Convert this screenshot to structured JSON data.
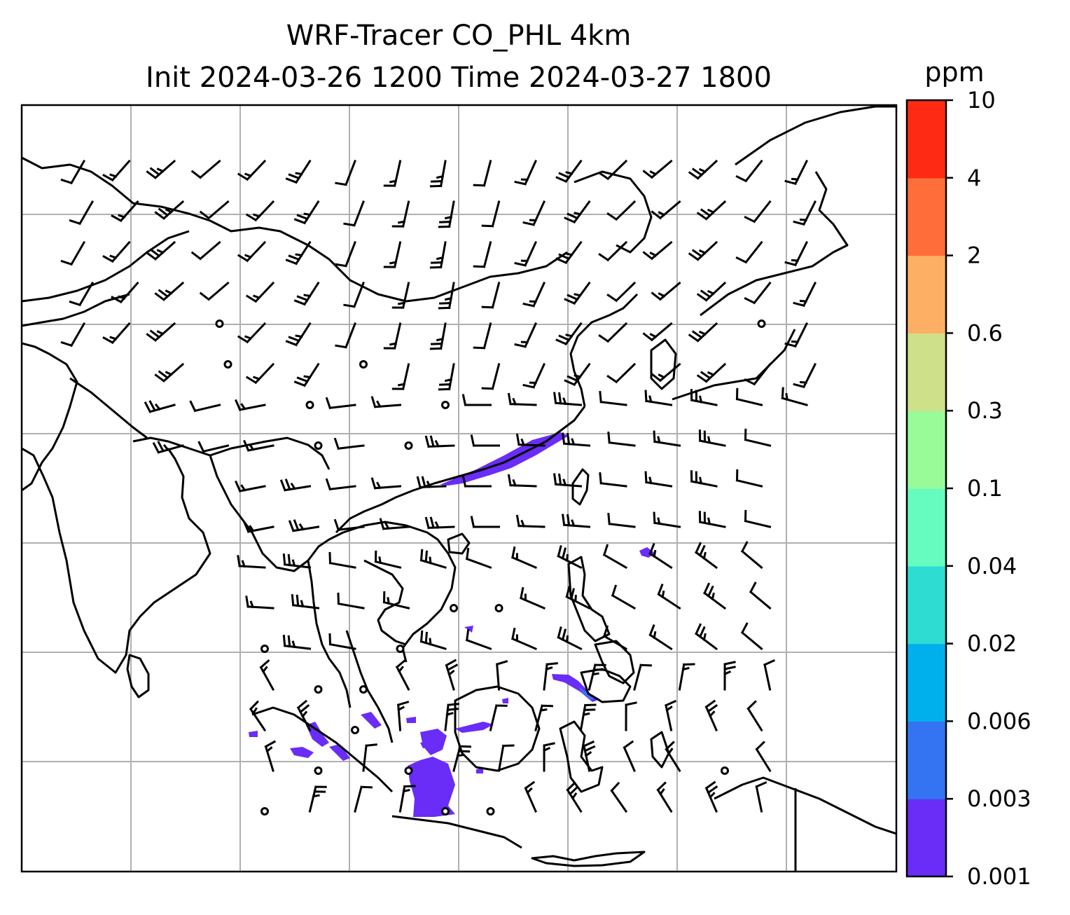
{
  "title": {
    "line1": "WRF-Tracer CO_PHL 4km",
    "line2": "Init 2024-03-26 1200 Time 2024-03-27 1800"
  },
  "colorbar": {
    "unit": "ppm",
    "levels": [
      "0.001",
      "0.003",
      "0.006",
      "0.02",
      "0.04",
      "0.1",
      "0.3",
      "0.6",
      "2",
      "4",
      "10"
    ],
    "colors": [
      "#6a2cf7",
      "#3474f2",
      "#00b0ec",
      "#2fdcd2",
      "#66fbbf",
      "#98fb98",
      "#cfe08a",
      "#fdb063",
      "#ff6d3a",
      "#ff2a13"
    ]
  },
  "map": {
    "grid": "on",
    "coastline_color": "#000000",
    "plume_color": "#6a2cf7",
    "plume_core_color": "#3474f2"
  }
}
